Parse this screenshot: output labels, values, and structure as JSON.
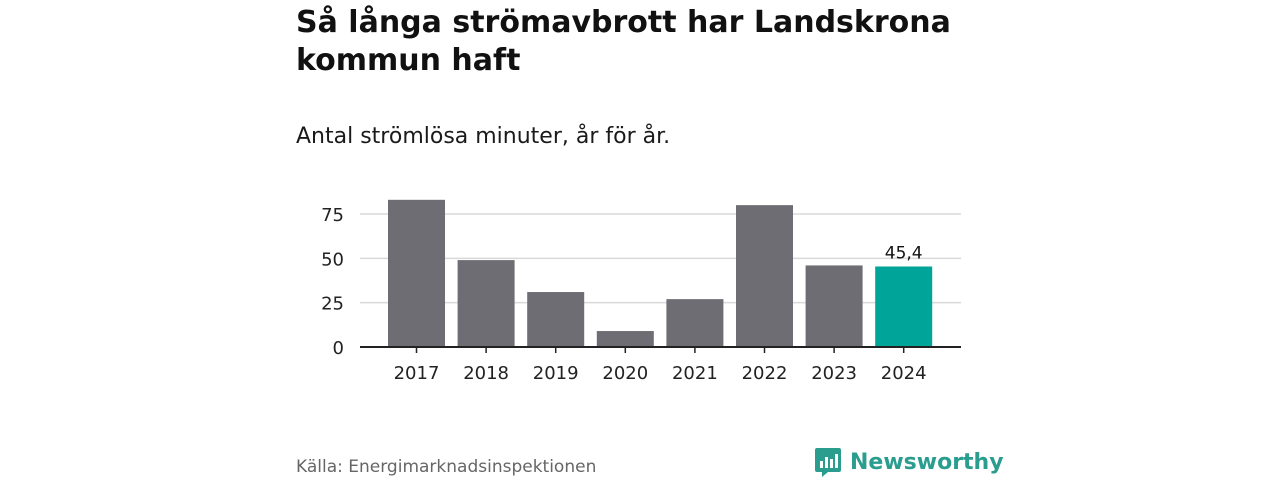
{
  "title": "Så långa strömavbrott har Landskrona kommun haft",
  "subtitle": "Antal strömlösa minuter, år för år.",
  "source": "Källa: Energimarknadsinspektionen",
  "brand": "Newsworthy",
  "colors": {
    "bar": "#6e6d73",
    "highlight": "#00a499",
    "grid": "#d9d9d9",
    "axis": "#222222",
    "brand": "#2a9d8f"
  },
  "chart_data": {
    "type": "bar",
    "title": "Så långa strömavbrott har Landskrona kommun haft",
    "subtitle": "Antal strömlösa minuter, år för år.",
    "categories": [
      "2017",
      "2018",
      "2019",
      "2020",
      "2021",
      "2022",
      "2023",
      "2024"
    ],
    "values": [
      83,
      49,
      31,
      9,
      27,
      80,
      46,
      45.4
    ],
    "highlight_index": 7,
    "data_labels": [
      {
        "index": 7,
        "text": "45,4"
      }
    ],
    "yticks": [
      0,
      25,
      50,
      75
    ],
    "ylim": [
      0,
      80
    ],
    "xlabel": "",
    "ylabel": "",
    "grid": true
  }
}
